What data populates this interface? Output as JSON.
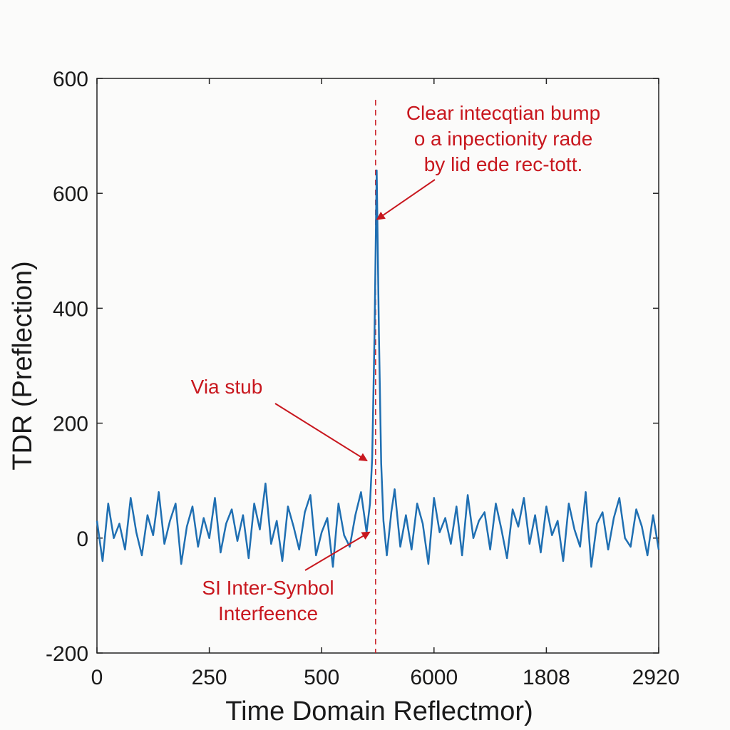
{
  "chart_data": {
    "type": "line",
    "title": "",
    "xlabel": "Time Domain Reflectmor)",
    "ylabel": "TDR (Preflection)",
    "x_tick_labels": [
      "0",
      "250",
      "500",
      "6000",
      "1808",
      "2920"
    ],
    "y_tick_labels": [
      "-200",
      "0",
      "200",
      "400",
      "600",
      "600"
    ],
    "xlim": [
      0,
      2500
    ],
    "ylim": [
      -200,
      800
    ],
    "grid": false,
    "legend": "none",
    "line_color": "#1f6fb2",
    "annotation_color": "#c8171e",
    "marker_x": 1240,
    "series": [
      {
        "values_note": "",
        "x": [
          0,
          25,
          50,
          75,
          100,
          125,
          150,
          175,
          200,
          225,
          250,
          275,
          300,
          325,
          350,
          375,
          400,
          425,
          450,
          475,
          500,
          525,
          550,
          575,
          600,
          625,
          650,
          675,
          700,
          725,
          750,
          775,
          800,
          825,
          850,
          875,
          900,
          925,
          950,
          975,
          1000,
          1025,
          1050,
          1075,
          1100,
          1125,
          1150,
          1175,
          1200,
          1215,
          1225,
          1235,
          1245,
          1255,
          1265,
          1275,
          1290,
          1310,
          1325,
          1350,
          1375,
          1400,
          1425,
          1450,
          1475,
          1500,
          1525,
          1550,
          1575,
          1600,
          1625,
          1650,
          1675,
          1700,
          1725,
          1750,
          1775,
          1800,
          1825,
          1850,
          1875,
          1900,
          1925,
          1950,
          1975,
          2000,
          2025,
          2050,
          2075,
          2100,
          2125,
          2150,
          2175,
          2200,
          2225,
          2250,
          2275,
          2300,
          2325,
          2350,
          2375,
          2400,
          2425,
          2450,
          2475,
          2500
        ],
        "y": [
          30,
          -40,
          60,
          0,
          25,
          -20,
          70,
          10,
          -30,
          40,
          5,
          80,
          -10,
          30,
          60,
          -45,
          20,
          55,
          -15,
          35,
          0,
          70,
          -25,
          25,
          50,
          -5,
          40,
          -35,
          60,
          15,
          95,
          -10,
          30,
          -40,
          55,
          20,
          -20,
          45,
          75,
          -30,
          10,
          35,
          -50,
          60,
          5,
          -15,
          40,
          80,
          10,
          60,
          140,
          350,
          640,
          350,
          130,
          30,
          -30,
          45,
          85,
          -15,
          40,
          -20,
          60,
          25,
          -45,
          70,
          10,
          35,
          -10,
          55,
          -30,
          75,
          0,
          30,
          45,
          -20,
          60,
          15,
          -35,
          50,
          20,
          70,
          -10,
          40,
          -25,
          55,
          5,
          30,
          -40,
          60,
          15,
          -15,
          80,
          -50,
          25,
          45,
          -20,
          35,
          70,
          0,
          -15,
          50,
          20,
          -30,
          40,
          -20
        ]
      }
    ],
    "annotations": [
      {
        "lines": [
          "Clear intecqtian bump",
          "o a inpectionity rade",
          "by lid ede rec-tott."
        ],
        "point": [
          1248,
          555
        ]
      },
      {
        "lines": [
          "Via stub"
        ],
        "point": [
          1200,
          135
        ]
      },
      {
        "lines": [
          "SI Inter-Synbol",
          "Interfeence"
        ],
        "point": [
          1212,
          10
        ]
      }
    ]
  }
}
